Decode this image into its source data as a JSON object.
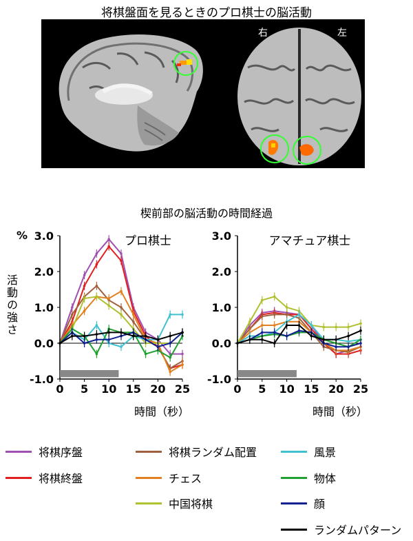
{
  "figure_title": "将棋盤面を見るときのプロ棋士の脳活動",
  "brain": {
    "right_label": "右",
    "left_label": "左"
  },
  "chart_section_title": "楔前部の脳活動の時間経過",
  "ylabel": "活動の強さ",
  "y_unit": "%",
  "xlabel": "時間（秒）",
  "legend": [
    {
      "label": "将棋序盤",
      "color": "#a050b0"
    },
    {
      "label": "将棋終盤",
      "color": "#e02020"
    },
    {
      "label": "将棋ランダム配置",
      "color": "#a0603c"
    },
    {
      "label": "チェス",
      "color": "#e08020"
    },
    {
      "label": "中国将棋",
      "color": "#b0c030"
    },
    {
      "label": "風景",
      "color": "#40c0d0"
    },
    {
      "label": "物体",
      "color": "#20a030"
    },
    {
      "label": "顔",
      "color": "#102090"
    },
    {
      "label": "ランダムパターン",
      "color": "#000000"
    }
  ],
  "chart_data": [
    {
      "type": "line",
      "title": "プロ棋士",
      "x": [
        0,
        2.5,
        5,
        7.5,
        10,
        12.5,
        15,
        17.5,
        20,
        22.5,
        25
      ],
      "xticks": [
        0,
        5,
        10,
        15,
        20,
        25
      ],
      "yticks": [
        "-1.0",
        "0.0",
        "1.0",
        "2.0",
        "3.0"
      ],
      "ylim": [
        -1.0,
        3.0
      ],
      "xlim": [
        0,
        25
      ],
      "stimulus_period": [
        0,
        12
      ],
      "series": [
        {
          "name": "将棋序盤",
          "color": "#a050b0",
          "values": [
            0.0,
            1.0,
            1.9,
            2.5,
            2.9,
            2.5,
            1.0,
            0.3,
            0.1,
            -0.3,
            -0.3
          ]
        },
        {
          "name": "将棋終盤",
          "color": "#e02020",
          "values": [
            0.0,
            0.6,
            1.6,
            2.2,
            2.7,
            2.3,
            0.9,
            0.2,
            -0.1,
            -0.7,
            -0.6
          ]
        },
        {
          "name": "将棋ランダム配置",
          "color": "#a0603c",
          "values": [
            0.0,
            0.8,
            1.3,
            1.6,
            1.2,
            1.0,
            0.6,
            0.1,
            -0.1,
            -0.7,
            -0.5
          ]
        },
        {
          "name": "チェス",
          "color": "#e08020",
          "values": [
            0.0,
            0.5,
            0.9,
            1.3,
            1.25,
            1.45,
            0.8,
            0.1,
            0.0,
            -0.8,
            -0.6
          ]
        },
        {
          "name": "中国将棋",
          "color": "#b0c030",
          "values": [
            0.0,
            0.4,
            1.25,
            1.3,
            1.05,
            0.8,
            0.4,
            0.0,
            0.0,
            0.0,
            0.3
          ]
        },
        {
          "name": "風景",
          "color": "#40c0d0",
          "values": [
            0.0,
            0.3,
            0.1,
            0.5,
            0.0,
            -0.1,
            0.2,
            0.1,
            0.1,
            0.8,
            0.8
          ]
        },
        {
          "name": "物体",
          "color": "#20a030",
          "values": [
            0.0,
            0.4,
            0.2,
            -0.3,
            0.4,
            0.3,
            0.3,
            -0.3,
            -0.2,
            -0.4,
            0.2
          ]
        },
        {
          "name": "顔",
          "color": "#102090",
          "values": [
            0.0,
            0.3,
            0.0,
            0.1,
            0.1,
            0.2,
            0.3,
            0.1,
            -0.1,
            0.0,
            0.3
          ]
        },
        {
          "name": "ランダムパターン",
          "color": "#000000",
          "values": [
            0.0,
            0.2,
            0.2,
            0.25,
            0.3,
            0.3,
            0.2,
            0.2,
            0.1,
            0.2,
            0.3
          ]
        }
      ]
    },
    {
      "type": "line",
      "title": "アマチュア棋士",
      "x": [
        0,
        2.5,
        5,
        7.5,
        10,
        12.5,
        15,
        17.5,
        20,
        22.5,
        25
      ],
      "xticks": [
        0,
        5,
        10,
        15,
        20,
        25
      ],
      "yticks": [
        "-1.0",
        "0.0",
        "1.0",
        "2.0",
        "3.0"
      ],
      "ylim": [
        -1.0,
        3.0
      ],
      "xlim": [
        0,
        25
      ],
      "stimulus_period": [
        0,
        12
      ],
      "series": [
        {
          "name": "将棋序盤",
          "color": "#a050b0",
          "values": [
            0.0,
            0.5,
            0.85,
            0.9,
            0.85,
            0.8,
            0.5,
            0.0,
            -0.3,
            -0.2,
            -0.1
          ]
        },
        {
          "name": "将棋終盤",
          "color": "#e02020",
          "values": [
            0.0,
            0.4,
            0.8,
            0.85,
            0.8,
            0.8,
            0.4,
            0.0,
            -0.3,
            -0.3,
            -0.2
          ]
        },
        {
          "name": "将棋ランダム配置",
          "color": "#a0603c",
          "values": [
            0.0,
            0.4,
            0.75,
            0.8,
            0.8,
            0.7,
            0.3,
            -0.1,
            -0.2,
            -0.25,
            -0.1
          ]
        },
        {
          "name": "チェス",
          "color": "#e08020",
          "values": [
            0.0,
            0.3,
            0.5,
            0.5,
            0.6,
            0.6,
            0.3,
            0.0,
            -0.2,
            -0.2,
            -0.1
          ]
        },
        {
          "name": "中国将棋",
          "color": "#b0c030",
          "values": [
            0.0,
            0.6,
            1.2,
            1.3,
            1.0,
            0.9,
            0.5,
            0.45,
            0.45,
            0.45,
            0.55
          ]
        },
        {
          "name": "風景",
          "color": "#40c0d0",
          "values": [
            0.0,
            0.2,
            0.2,
            0.3,
            0.6,
            0.8,
            0.5,
            0.1,
            0.1,
            0.05,
            0.1
          ]
        },
        {
          "name": "物体",
          "color": "#20a030",
          "values": [
            0.0,
            0.1,
            0.2,
            0.25,
            0.2,
            0.3,
            0.3,
            0.1,
            0.0,
            -0.1,
            0.1
          ]
        },
        {
          "name": "顔",
          "color": "#102090",
          "values": [
            0.0,
            0.1,
            0.3,
            0.3,
            0.2,
            0.35,
            0.3,
            0.0,
            -0.1,
            -0.1,
            0.0
          ]
        },
        {
          "name": "ランダムパターン",
          "color": "#000000",
          "values": [
            0.0,
            0.1,
            0.1,
            0.0,
            0.5,
            0.5,
            0.2,
            0.1,
            0.1,
            0.2,
            0.35
          ]
        }
      ]
    }
  ]
}
